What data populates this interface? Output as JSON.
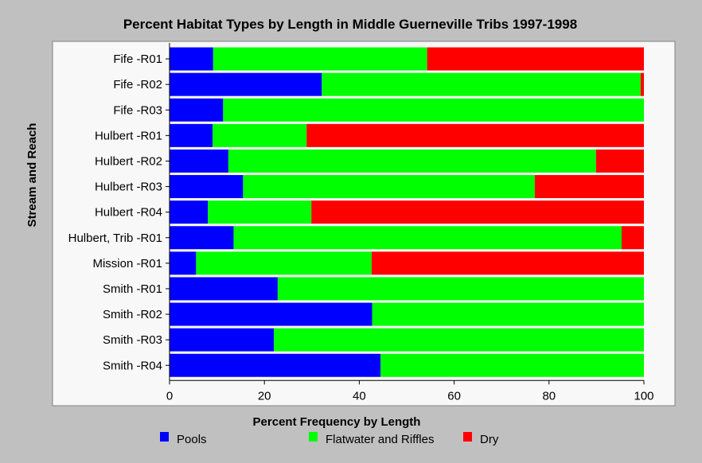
{
  "chart_data": {
    "type": "bar",
    "orientation": "horizontal",
    "stacked": true,
    "title": "Percent Habitat Types by Length in Middle Guerneville Tribs 1997-1998",
    "xlabel": "Percent Frequency by Length",
    "ylabel": "Stream and Reach",
    "xlim": [
      0,
      100
    ],
    "xticks": [
      0,
      20,
      40,
      60,
      80,
      100
    ],
    "grid": false,
    "legend_position": "bottom",
    "categories": [
      "Fife -R01",
      "Fife -R02",
      "Fife -R03",
      "Hulbert -R01",
      "Hulbert -R02",
      "Hulbert -R03",
      "Hulbert -R04",
      "Hulbert, Trib -R01",
      "Mission -R01",
      "Smith -R01",
      "Smith -R02",
      "Smith -R03",
      "Smith -R04"
    ],
    "series": [
      {
        "name": "Pools",
        "color": "#0000ff",
        "values": [
          9.2,
          32.1,
          11.3,
          9.1,
          12.4,
          15.5,
          8.1,
          13.5,
          5.6,
          22.8,
          42.7,
          22.0,
          44.5
        ]
      },
      {
        "name": "Flatwater and Riffles",
        "color": "#00ff00",
        "values": [
          45.1,
          67.2,
          88.7,
          19.8,
          77.5,
          61.5,
          21.8,
          81.8,
          37.0,
          77.2,
          57.3,
          78.0,
          55.5
        ]
      },
      {
        "name": "Dry",
        "color": "#ff0000",
        "values": [
          45.7,
          0.7,
          0.0,
          71.1,
          10.1,
          23.0,
          70.1,
          4.7,
          57.4,
          0.0,
          0.0,
          0.0,
          0.0
        ]
      }
    ]
  }
}
